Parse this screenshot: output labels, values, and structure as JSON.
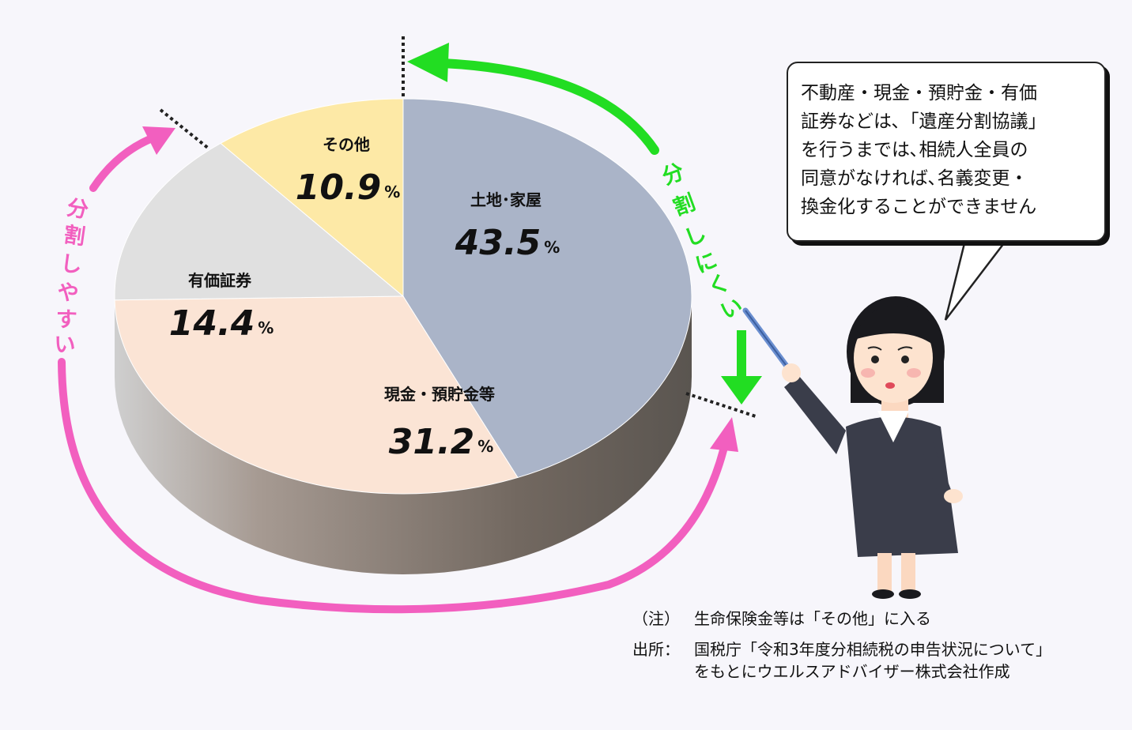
{
  "chart_data": {
    "type": "pie",
    "slices": [
      {
        "label": "土地･家屋",
        "value": 43.5,
        "unit": "%",
        "color": "#aab4c8"
      },
      {
        "label": "現金・預貯金等",
        "value": 31.2,
        "unit": "%",
        "color": "#fbe4d5"
      },
      {
        "label": "有価証券",
        "value": 14.4,
        "unit": "%",
        "color": "#e0e0e0"
      },
      {
        "label": "その他",
        "value": 10.9,
        "unit": "%",
        "color": "#fde9a6"
      }
    ],
    "annotations": {
      "hard_to_divide": {
        "text": "分割しにくい",
        "color": "#22dd22"
      },
      "easy_to_divide": {
        "text": "分割しやすい",
        "color": "#f25fbf"
      }
    }
  },
  "speech_bubble": {
    "lines": [
      "不動産・現金・預貯金・有価",
      "証券などは､「遺産分割協議」",
      "を行うまでは､相続人全員の",
      "同意がなければ､名義変更・",
      "換金化することができません"
    ]
  },
  "notes": {
    "note_label": "（注）",
    "note_text": "生命保険金等は「その他」に入る",
    "source_label": "出所：",
    "source_line1": "国税庁「令和3年度分相続税の申告状況について」",
    "source_line2": "をもとにウエルスアドバイザー株式会社作成"
  }
}
